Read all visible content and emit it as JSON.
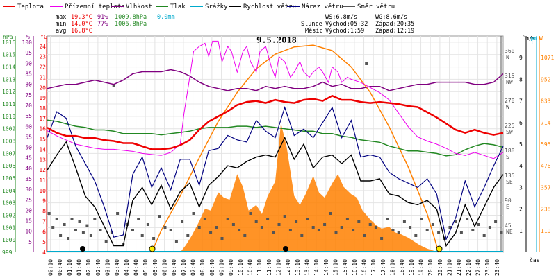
{
  "chart_data": {
    "type": "line",
    "title": "9.5.2018",
    "legend": [
      "Teplota",
      "Přízemní teplota",
      "Vlhkost",
      "Tlak",
      "Srážky",
      "Rychlost větru",
      "Náraz větru",
      "Směr větru"
    ],
    "colors": {
      "teplota": "#ee0000",
      "prizemni": "#ee00ee",
      "vlhkost": "#800080",
      "tlak": "#228822",
      "srazky": "#00aacc",
      "rychlost": "#000000",
      "naraz": "#000080",
      "smer": "#555555",
      "slunce": "#ff8000"
    },
    "stats": {
      "max_label": "max",
      "max_temp": "19.3°C",
      "max_hum": "91%",
      "max_press": "1009.8hPa",
      "max_rain": "0.0mm",
      "min_label": "min",
      "min_temp": "14.0°C",
      "min_hum": "77%",
      "min_press": "1006.8hPa",
      "avg_label": "avg",
      "avg_temp": "16.8°C",
      "ws": "WS:6.8m/s",
      "wg": "WG:8.6m/s",
      "slunce_label": "Slunce",
      "slunce_vychod": "Východ:05:32",
      "slunce_zapad": "Západ:20:35",
      "mesic_label": "Měsíc",
      "mesic_vychod": "Východ:1:59",
      "mesic_zapad": "Západ:12:19"
    },
    "axes": {
      "hpa_unit": "hPa",
      "pct_unit": "%",
      "c_unit": "°C",
      "deg_unit": "°",
      "ms_unit": "m/s",
      "mm_unit": "mm",
      "w_unit": "W",
      "time_unit": "čas",
      "hpa_ticks": [
        "1016",
        "1015",
        "1014",
        "1013",
        "1012",
        "1011",
        "1010",
        "1009",
        "1008",
        "1007",
        "1006",
        "1005",
        "1004",
        "1003",
        "1002",
        "1001",
        "1000",
        "999"
      ],
      "pct_ticks": [
        "100",
        "95",
        "90",
        "85",
        "80",
        "75",
        "70",
        "65",
        "60",
        "55",
        "50",
        "45",
        "40",
        "35",
        "30",
        "25",
        "20",
        "15",
        "10",
        "5"
      ],
      "c_ticks": [
        "24",
        "23",
        "22",
        "21",
        "20",
        "19",
        "18",
        "17",
        "16",
        "15",
        "14",
        "13",
        "12",
        "11",
        "10",
        "9",
        "8",
        "7",
        "6",
        "5",
        "4"
      ],
      "dir_ticks": [
        "360",
        "315",
        "270",
        "225",
        "180",
        "135",
        "90",
        "45"
      ],
      "dir_names": [
        "N",
        "NW",
        "W",
        "SW",
        "S",
        "SE",
        "E",
        "NE"
      ],
      "ms_ticks": [
        "9",
        "8",
        "7",
        "6",
        "5",
        "4",
        "3",
        "2",
        "1"
      ],
      "mm_ticks": [
        "1"
      ],
      "w_ticks": [
        "1071",
        "952",
        "833",
        "714",
        "595",
        "476",
        "357",
        "238",
        "119"
      ],
      "x_ticks": [
        "00:10",
        "00:40",
        "01:10",
        "01:40",
        "02:10",
        "02:40",
        "03:10",
        "03:40",
        "04:10",
        "04:40",
        "05:10",
        "05:40",
        "06:10",
        "06:40",
        "07:10",
        "07:40",
        "08:10",
        "08:40",
        "09:10",
        "09:40",
        "10:10",
        "10:40",
        "11:10",
        "11:40",
        "12:10",
        "12:40",
        "13:10",
        "13:40",
        "14:10",
        "14:40",
        "15:10",
        "15:40",
        "16:10",
        "16:40",
        "17:10",
        "17:40",
        "18:10",
        "18:40",
        "19:10",
        "19:40",
        "20:10",
        "20:40",
        "21:10",
        "21:40",
        "22:10",
        "22:40",
        "23:10",
        "23:40"
      ],
      "temp_range": [
        4,
        25
      ],
      "pressure_range": [
        999,
        1016.5
      ],
      "humidity_range": [
        0,
        103
      ],
      "wind_range": [
        0,
        10
      ],
      "direction_range": [
        0,
        390
      ],
      "solar_range": [
        0,
        1190
      ],
      "x_range": [
        0,
        24
      ]
    },
    "series": {
      "teplota": {
        "x": [
          0,
          0.5,
          1,
          1.5,
          2,
          2.5,
          3,
          3.5,
          4,
          4.5,
          5,
          5.5,
          6,
          6.5,
          7,
          7.5,
          8,
          8.5,
          9,
          9.5,
          10,
          10.5,
          11,
          11.5,
          12,
          12.5,
          13,
          13.5,
          14,
          14.5,
          15,
          15.5,
          16,
          16.5,
          17,
          17.5,
          18,
          18.5,
          19,
          19.5,
          20,
          20.5,
          21,
          21.5,
          22,
          22.5,
          23,
          23.5,
          24
        ],
        "values": [
          16.1,
          15.6,
          15.3,
          15.3,
          15.1,
          15.1,
          14.9,
          14.8,
          14.6,
          14.6,
          14.3,
          14.0,
          14.0,
          14.1,
          14.4,
          14.9,
          15.9,
          16.7,
          17.2,
          17.7,
          18.3,
          18.6,
          18.7,
          18.5,
          18.8,
          18.6,
          18.5,
          18.8,
          18.9,
          18.7,
          19.2,
          18.8,
          18.8,
          18.6,
          18.5,
          18.6,
          18.5,
          18.4,
          18.2,
          18.1,
          17.6,
          17.1,
          16.5,
          15.9,
          15.6,
          15.9,
          15.6,
          15.4,
          15.6
        ]
      },
      "prizemni": {
        "x": [
          0,
          0.5,
          1,
          1.5,
          2,
          2.5,
          3,
          3.5,
          4,
          4.5,
          5,
          5.5,
          6,
          6.5,
          7,
          7.2,
          7.5,
          7.7,
          8,
          8.3,
          8.5,
          8.7,
          9,
          9.2,
          9.5,
          9.7,
          10,
          10.3,
          10.5,
          10.7,
          11,
          11.2,
          11.5,
          11.8,
          12,
          12.2,
          12.5,
          12.8,
          13,
          13.3,
          13.5,
          13.8,
          14,
          14.3,
          14.5,
          14.8,
          15,
          15.3,
          15.5,
          15.8,
          16,
          16.5,
          17,
          17.5,
          18,
          18.5,
          19,
          19.5,
          20,
          20.5,
          21,
          21.5,
          22,
          22.5,
          23,
          23.5,
          24
        ],
        "values": [
          15.8,
          15.3,
          14.9,
          14.5,
          14.3,
          14.1,
          14.0,
          14.0,
          13.9,
          13.8,
          13.6,
          13.5,
          13.4,
          13.7,
          14.5,
          17.5,
          21.0,
          23.5,
          24.0,
          24.3,
          23.0,
          24.5,
          24.5,
          22.5,
          24.0,
          23.5,
          21.5,
          23.5,
          24.0,
          22.5,
          21.5,
          23.5,
          24.0,
          22.0,
          21.0,
          23.0,
          22.5,
          21.0,
          21.5,
          22.5,
          21.5,
          21.0,
          21.5,
          22.0,
          21.5,
          20.5,
          22.0,
          21.5,
          20.5,
          21.0,
          20.8,
          20.5,
          20.0,
          19.5,
          18.8,
          17.5,
          16.2,
          15.2,
          14.8,
          14.5,
          14.1,
          13.6,
          13.4,
          13.7,
          13.4,
          13.1,
          13.7
        ]
      },
      "vlhkost": {
        "x": [
          0,
          0.5,
          1,
          1.5,
          2,
          2.5,
          3,
          3.5,
          4,
          4.5,
          5,
          5.5,
          6,
          6.5,
          7,
          7.5,
          8,
          8.5,
          9,
          9.5,
          10,
          10.5,
          11,
          11.5,
          12,
          12.5,
          13,
          13.5,
          14,
          14.5,
          15,
          15.5,
          16,
          16.5,
          17,
          17.5,
          18,
          18.5,
          19,
          19.5,
          20,
          20.5,
          21,
          21.5,
          22,
          22.5,
          23,
          23.5,
          24
        ],
        "values": [
          78,
          79,
          80,
          80,
          81,
          82,
          81,
          80,
          82,
          85,
          86,
          86,
          86,
          87,
          86,
          84,
          81,
          79,
          78,
          77,
          78,
          78,
          77,
          79,
          78,
          79,
          78,
          78,
          79,
          81,
          79,
          80,
          78,
          78,
          79,
          79,
          77,
          78,
          79,
          80,
          80,
          81,
          81,
          81,
          81,
          80,
          80,
          81,
          85
        ]
      },
      "tlak": {
        "x": [
          0,
          0.5,
          1,
          1.5,
          2,
          2.5,
          3,
          3.5,
          4,
          4.5,
          5,
          5.5,
          6,
          6.5,
          7,
          7.5,
          8,
          8.5,
          9,
          9.5,
          10,
          10.5,
          11,
          11.5,
          12,
          12.5,
          13,
          13.5,
          14,
          14.5,
          15,
          15.5,
          16,
          16.5,
          17,
          17.5,
          18,
          18.5,
          19,
          19.5,
          20,
          20.5,
          21,
          21.5,
          22,
          22.5,
          23,
          23.5,
          24
        ],
        "values": [
          1009.7,
          1009.6,
          1009.4,
          1009.2,
          1009.1,
          1008.9,
          1008.9,
          1008.8,
          1008.6,
          1008.6,
          1008.6,
          1008.6,
          1008.5,
          1008.6,
          1008.7,
          1008.8,
          1009.0,
          1009.1,
          1009.1,
          1009.1,
          1009.2,
          1009.2,
          1009.1,
          1009.2,
          1009.1,
          1009.0,
          1008.9,
          1008.8,
          1008.8,
          1008.6,
          1008.6,
          1008.4,
          1008.3,
          1008.1,
          1008.0,
          1007.9,
          1007.6,
          1007.4,
          1007.2,
          1007.2,
          1007.1,
          1007.0,
          1006.8,
          1006.9,
          1007.3,
          1007.6,
          1007.8,
          1007.7,
          1007.5
        ]
      },
      "rychlost": {
        "x": [
          0,
          0.5,
          1,
          1.5,
          2,
          2.5,
          3,
          3.5,
          4,
          4.5,
          5,
          5.5,
          6,
          6.5,
          7,
          7.5,
          8,
          8.5,
          9,
          9.5,
          10,
          10.5,
          11,
          11.5,
          12,
          12.5,
          13,
          13.5,
          14,
          14.5,
          15,
          15.5,
          16,
          16.5,
          17,
          17.5,
          18,
          18.5,
          19,
          19.5,
          20,
          20.5,
          21,
          21.5,
          22,
          22.5,
          23,
          23.5,
          24
        ],
        "values": [
          3.8,
          4.5,
          5.1,
          3.9,
          2.6,
          2.1,
          1.2,
          0.3,
          0.3,
          2.4,
          3.0,
          2.2,
          3.1,
          2.0,
          2.8,
          3.2,
          2.1,
          3.1,
          3.5,
          4.0,
          3.9,
          4.2,
          4.4,
          4.5,
          4.4,
          5.3,
          4.3,
          5.0,
          3.9,
          4.4,
          4.5,
          4.1,
          4.5,
          3.3,
          3.3,
          3.4,
          2.7,
          2.6,
          2.3,
          2.2,
          2.4,
          2.0,
          0.3,
          0.9,
          2.2,
          1.2,
          2.1,
          3.0,
          3.6
        ]
      },
      "naraz": {
        "x": [
          0,
          0.5,
          1,
          1.5,
          2,
          2.5,
          3,
          3.5,
          4,
          4.5,
          5,
          5.5,
          6,
          6.5,
          7,
          7.5,
          8,
          8.5,
          9,
          9.5,
          10,
          10.5,
          11,
          11.5,
          12,
          12.5,
          13,
          13.5,
          14,
          14.5,
          15,
          15.5,
          16,
          16.5,
          17,
          17.5,
          18,
          18.5,
          19,
          19.5,
          20,
          20.5,
          21,
          21.5,
          22,
          22.5,
          23,
          23.5,
          24
        ],
        "values": [
          5.3,
          6.5,
          6.2,
          4.9,
          4.1,
          3.3,
          2.1,
          0.7,
          0.8,
          3.6,
          4.4,
          3.0,
          3.9,
          2.9,
          4.3,
          4.3,
          3.1,
          4.7,
          4.8,
          5.4,
          5.2,
          5.1,
          6.1,
          5.6,
          5.3,
          6.7,
          5.4,
          5.7,
          5.3,
          6.0,
          6.7,
          5.3,
          6.1,
          4.4,
          4.5,
          4.4,
          3.7,
          3.4,
          3.2,
          3.0,
          3.4,
          2.7,
          0.6,
          1.6,
          3.3,
          2.1,
          3.0,
          4.0,
          4.9
        ]
      },
      "smer": {
        "x": [
          0.1,
          0.3,
          0.5,
          0.7,
          0.9,
          1.1,
          1.3,
          1.5,
          1.7,
          1.9,
          2.1,
          2.3,
          2.5,
          2.8,
          3.1,
          3.4,
          3.7,
          4.0,
          4.2,
          4.5,
          4.8,
          5.0,
          5.3,
          5.6,
          5.9,
          6.2,
          6.5,
          6.8,
          7.1,
          7.4,
          7.7,
          8.0,
          8.3,
          8.6,
          8.9,
          9.2,
          9.5,
          9.8,
          10.1,
          10.4,
          10.7,
          11.0,
          11.3,
          11.6,
          11.9,
          12.2,
          12.5,
          12.8,
          13.1,
          13.4,
          13.7,
          14.0,
          14.3,
          14.6,
          14.9,
          15.2,
          15.5,
          15.8,
          16.1,
          16.4,
          16.7,
          17.0,
          17.3,
          17.6,
          17.9,
          18.2,
          18.5,
          18.8,
          19.1,
          19.4,
          19.7,
          20.0,
          20.3,
          20.6,
          20.9,
          21.2,
          21.5,
          21.8,
          22.1,
          22.4,
          22.7,
          23.0,
          23.3,
          23.6,
          23.9,
          3.5,
          16.8
        ],
        "values": [
          70,
          45,
          60,
          30,
          50,
          25,
          60,
          40,
          55,
          35,
          48,
          30,
          60,
          40,
          20,
          35,
          70,
          15,
          50,
          40,
          60,
          30,
          50,
          25,
          65,
          45,
          40,
          20,
          55,
          30,
          70,
          45,
          60,
          35,
          45,
          25,
          60,
          50,
          40,
          30,
          70,
          55,
          45,
          60,
          35,
          50,
          65,
          40,
          55,
          30,
          60,
          45,
          40,
          50,
          70,
          35,
          45,
          60,
          40,
          55,
          30,
          50,
          45,
          25,
          60,
          40,
          35,
          55,
          45,
          30,
          60,
          40,
          50,
          35,
          25,
          45,
          55,
          35,
          60,
          40,
          50,
          30,
          45,
          55,
          35,
          300,
          340
        ]
      },
      "slunce": {
        "x": [
          5.5,
          6,
          7,
          8,
          9,
          10,
          11,
          12,
          13,
          14,
          15,
          16,
          17,
          18,
          19,
          20,
          20.6
        ],
        "values": [
          0,
          120,
          310,
          520,
          720,
          880,
          1010,
          1090,
          1130,
          1140,
          1110,
          1020,
          880,
          690,
          470,
          210,
          0
        ]
      },
      "slunce_mereni": {
        "x": [
          7,
          7.3,
          7.6,
          8,
          8.3,
          8.6,
          9,
          9.3,
          9.6,
          10,
          10.3,
          10.6,
          11,
          11.3,
          11.6,
          12,
          12.3,
          12.6,
          13,
          13.3,
          13.6,
          14,
          14.3,
          14.6,
          15,
          15.3,
          15.6,
          16,
          16.3,
          16.6,
          17,
          17.3,
          17.6,
          18,
          18.3,
          18.6,
          19,
          19.3,
          19.6,
          20,
          20.3,
          20.6
        ],
        "values": [
          0,
          40,
          90,
          170,
          240,
          230,
          330,
          300,
          290,
          430,
          360,
          230,
          260,
          210,
          310,
          390,
          710,
          580,
          310,
          260,
          320,
          420,
          330,
          300,
          380,
          430,
          360,
          320,
          300,
          230,
          180,
          150,
          130,
          140,
          110,
          100,
          80,
          60,
          40,
          20,
          10,
          0
        ]
      }
    }
  }
}
